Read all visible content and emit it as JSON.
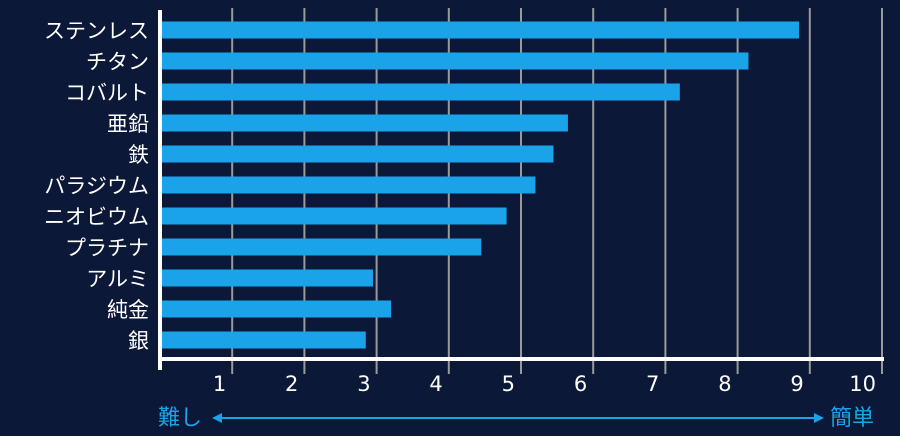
{
  "chart_data": {
    "type": "bar",
    "orientation": "horizontal",
    "categories": [
      "ステンレス",
      "チタン",
      "コバルト",
      "亜鉛",
      "鉄",
      "パラジウム",
      "ニオビウム",
      "プラチナ",
      "アルミ",
      "純金",
      "銀"
    ],
    "values": [
      8.85,
      8.15,
      7.2,
      5.65,
      5.45,
      5.2,
      4.8,
      4.45,
      2.95,
      3.2,
      2.85
    ],
    "xlim": [
      0,
      10
    ],
    "xticks": [
      "1",
      "2",
      "3",
      "4",
      "5",
      "6",
      "7",
      "8",
      "9",
      "10"
    ],
    "grid": "vertical",
    "direction": {
      "left_label": "難し",
      "right_label": "簡単"
    },
    "colors": {
      "background": "#0b1838",
      "bar": "#1aa3e8",
      "grid": "#9a9a9a",
      "axis": "#ffffff",
      "text": "#ffffff",
      "direction": "#1aa3e8"
    }
  }
}
